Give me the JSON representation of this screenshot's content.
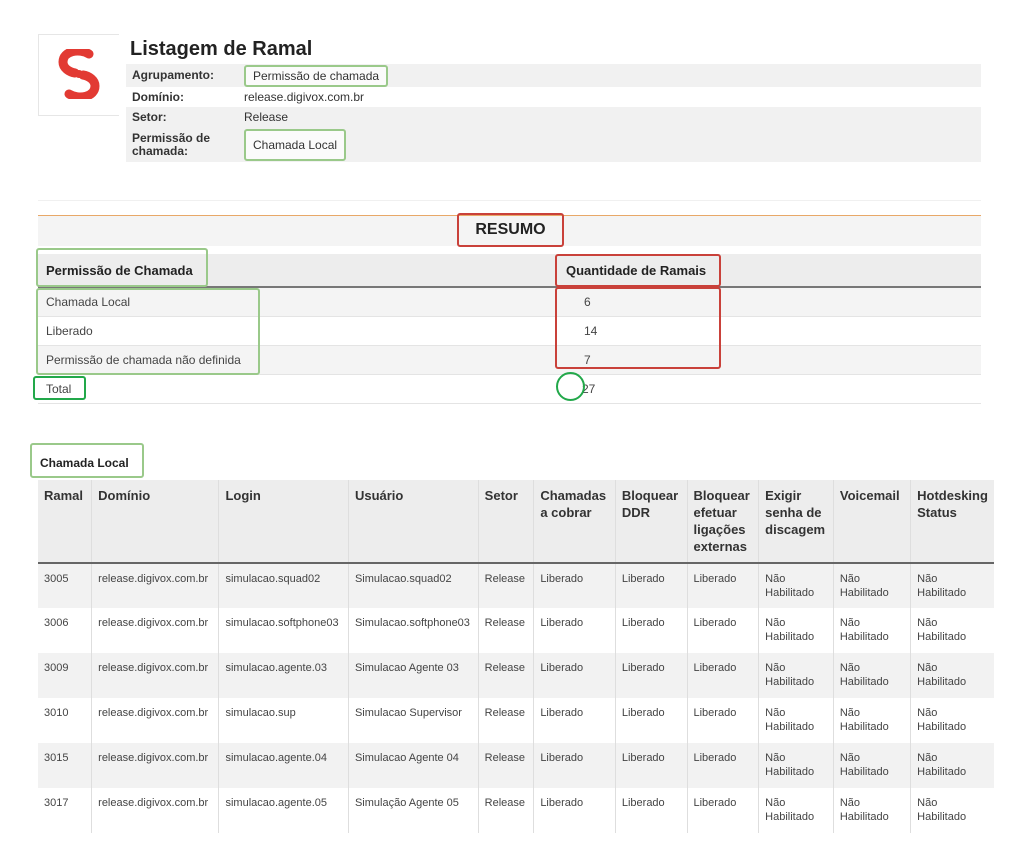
{
  "report": {
    "title": "Listagem de Ramal",
    "logo_icon": "s-logo-icon",
    "brand_color": "#e23a33",
    "info": [
      {
        "label": "Agrupamento:",
        "value": "Permissão de chamada"
      },
      {
        "label": "Domínio:",
        "value": "release.digivox.com.br"
      },
      {
        "label": "Setor:",
        "value": "Release"
      },
      {
        "label": "Permissão de chamada:",
        "value": "Chamada Local"
      }
    ]
  },
  "resumo": {
    "title": "RESUMO",
    "headers": {
      "left": "Permissão de Chamada",
      "right": "Quantidade de Ramais"
    },
    "rows": [
      {
        "label": "Chamada Local",
        "value": "6"
      },
      {
        "label": "Liberado",
        "value": "14"
      },
      {
        "label": "Permissão de chamada não definida",
        "value": "7"
      }
    ],
    "total": {
      "label": "Total",
      "value": "27"
    }
  },
  "detail": {
    "section_label": "Chamada Local",
    "headers": [
      "Ramal",
      "Domínio",
      "Login",
      "Usuário",
      "Setor",
      "Chamadas a cobrar",
      "Bloquear DDR",
      "Bloquear efetuar ligações externas",
      "Exigir senha de discagem",
      "Voicemail",
      "Hotdesking Status"
    ],
    "rows": [
      [
        "3005",
        "release.digivox.com.br",
        "simulacao.squad02",
        "Simulacao.squad02",
        "Release",
        "Liberado",
        "Liberado",
        "Liberado",
        "Não Habilitado",
        "Não Habilitado",
        "Não Habilitado"
      ],
      [
        "3006",
        "release.digivox.com.br",
        "simulacao.softphone03",
        "Simulacao.softphone03",
        "Release",
        "Liberado",
        "Liberado",
        "Liberado",
        "Não Habilitado",
        "Não Habilitado",
        "Não Habilitado"
      ],
      [
        "3009",
        "release.digivox.com.br",
        "simulacao.agente.03",
        "Simulacao Agente 03",
        "Release",
        "Liberado",
        "Liberado",
        "Liberado",
        "Não Habilitado",
        "Não Habilitado",
        "Não Habilitado"
      ],
      [
        "3010",
        "release.digivox.com.br",
        "simulacao.sup",
        "Simulacao Supervisor",
        "Release",
        "Liberado",
        "Liberado",
        "Liberado",
        "Não Habilitado",
        "Não Habilitado",
        "Não Habilitado"
      ],
      [
        "3015",
        "release.digivox.com.br",
        "simulacao.agente.04",
        "Simulacao Agente 04",
        "Release",
        "Liberado",
        "Liberado",
        "Liberado",
        "Não Habilitado",
        "Não Habilitado",
        "Não Habilitado"
      ],
      [
        "3017",
        "release.digivox.com.br",
        "simulacao.agente.05",
        "Simulação Agente 05",
        "Release",
        "Liberado",
        "Liberado",
        "Liberado",
        "Não Habilitado",
        "Não Habilitado",
        "Não Habilitado"
      ]
    ]
  },
  "colors": {
    "highlight_green": "#9ac98a",
    "highlight_green_strong": "#22a84a",
    "highlight_red": "#c9413a",
    "rule_orange": "#e8a868"
  }
}
